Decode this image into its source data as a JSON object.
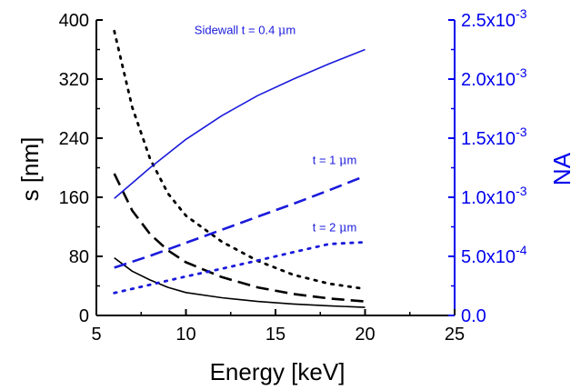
{
  "chart_data": {
    "type": "line",
    "xlabel": "Energy [keV]",
    "ylabel_left": "s [nm]",
    "ylabel_right": "NA",
    "xlim": [
      5,
      25
    ],
    "ylim_left": [
      0,
      400
    ],
    "ylim_right": [
      0,
      0.0025
    ],
    "x_ticks": [
      5,
      10,
      15,
      20,
      25
    ],
    "x_tick_labels": [
      "5",
      "10",
      "15",
      "20",
      "25"
    ],
    "y_left_ticks": [
      0,
      80,
      160,
      240,
      320,
      400
    ],
    "y_left_tick_labels": [
      "0",
      "80",
      "160",
      "240",
      "320",
      "400"
    ],
    "y_right_ticks": [
      0,
      0.0005,
      0.001,
      0.0015,
      0.002,
      0.0025
    ],
    "y_right_tick_labels": [
      {
        "mant": "0.0",
        "exp": ""
      },
      {
        "mant": "5.0x10",
        "exp": "-4"
      },
      {
        "mant": "1.0x10",
        "exp": "-3"
      },
      {
        "mant": "1.5x10",
        "exp": "-3"
      },
      {
        "mant": "2.0x10",
        "exp": "-3"
      },
      {
        "mant": "2.5x10",
        "exp": "-3"
      }
    ],
    "colors": {
      "axis_left": "#000000",
      "axis_right": "#0000ee",
      "s_series": "#000000",
      "na_series": "#1a1adc"
    },
    "series": [
      {
        "axis": "left",
        "style": "solid",
        "x": [
          6,
          7,
          8,
          9,
          10,
          12,
          14,
          16,
          18,
          20
        ],
        "y": [
          78,
          60,
          48,
          38,
          31,
          24,
          19,
          15.5,
          13,
          11
        ]
      },
      {
        "axis": "left",
        "style": "dashed",
        "x": [
          6,
          7,
          8,
          9,
          10,
          12,
          14,
          16,
          18,
          20
        ],
        "y": [
          192,
          142,
          110,
          88,
          72,
          52,
          38,
          29,
          23,
          19
        ]
      },
      {
        "axis": "left",
        "style": "dotted",
        "x": [
          6,
          7,
          8,
          9,
          10,
          12,
          14,
          16,
          18,
          20
        ],
        "y": [
          385,
          282,
          212,
          165,
          135,
          100,
          74,
          55,
          43,
          36
        ]
      },
      {
        "axis": "right",
        "style": "solid",
        "x": [
          6,
          8,
          10,
          12,
          14,
          16,
          18,
          20
        ],
        "y": [
          0.00099,
          0.00125,
          0.00149,
          0.00169,
          0.00186,
          0.002,
          0.00213,
          0.00225
        ]
      },
      {
        "axis": "right",
        "style": "dashed",
        "x": [
          6,
          8,
          10,
          12,
          14,
          16,
          18,
          20
        ],
        "y": [
          0.000405,
          0.000505,
          0.000615,
          0.000725,
          0.000835,
          0.000945,
          0.00106,
          0.00118
        ]
      },
      {
        "axis": "right",
        "style": "dotted",
        "x": [
          6,
          8,
          10,
          12,
          14,
          16,
          18,
          20
        ],
        "y": [
          0.00019,
          0.00026,
          0.00033,
          0.000395,
          0.000465,
          0.000535,
          0.000605,
          0.00062
        ]
      }
    ],
    "annotations": [
      {
        "pre": "Sidewall t = 0.4 ",
        "mu": "μ",
        "post": "m",
        "x": 13.3,
        "y_left": 381
      },
      {
        "pre": "t = 1 ",
        "mu": "μ",
        "post": "m",
        "x": 18.3,
        "y_left": 205
      },
      {
        "pre": "t = 2 ",
        "mu": "μ",
        "post": "m",
        "x": 18.3,
        "y_left": 114
      }
    ]
  }
}
